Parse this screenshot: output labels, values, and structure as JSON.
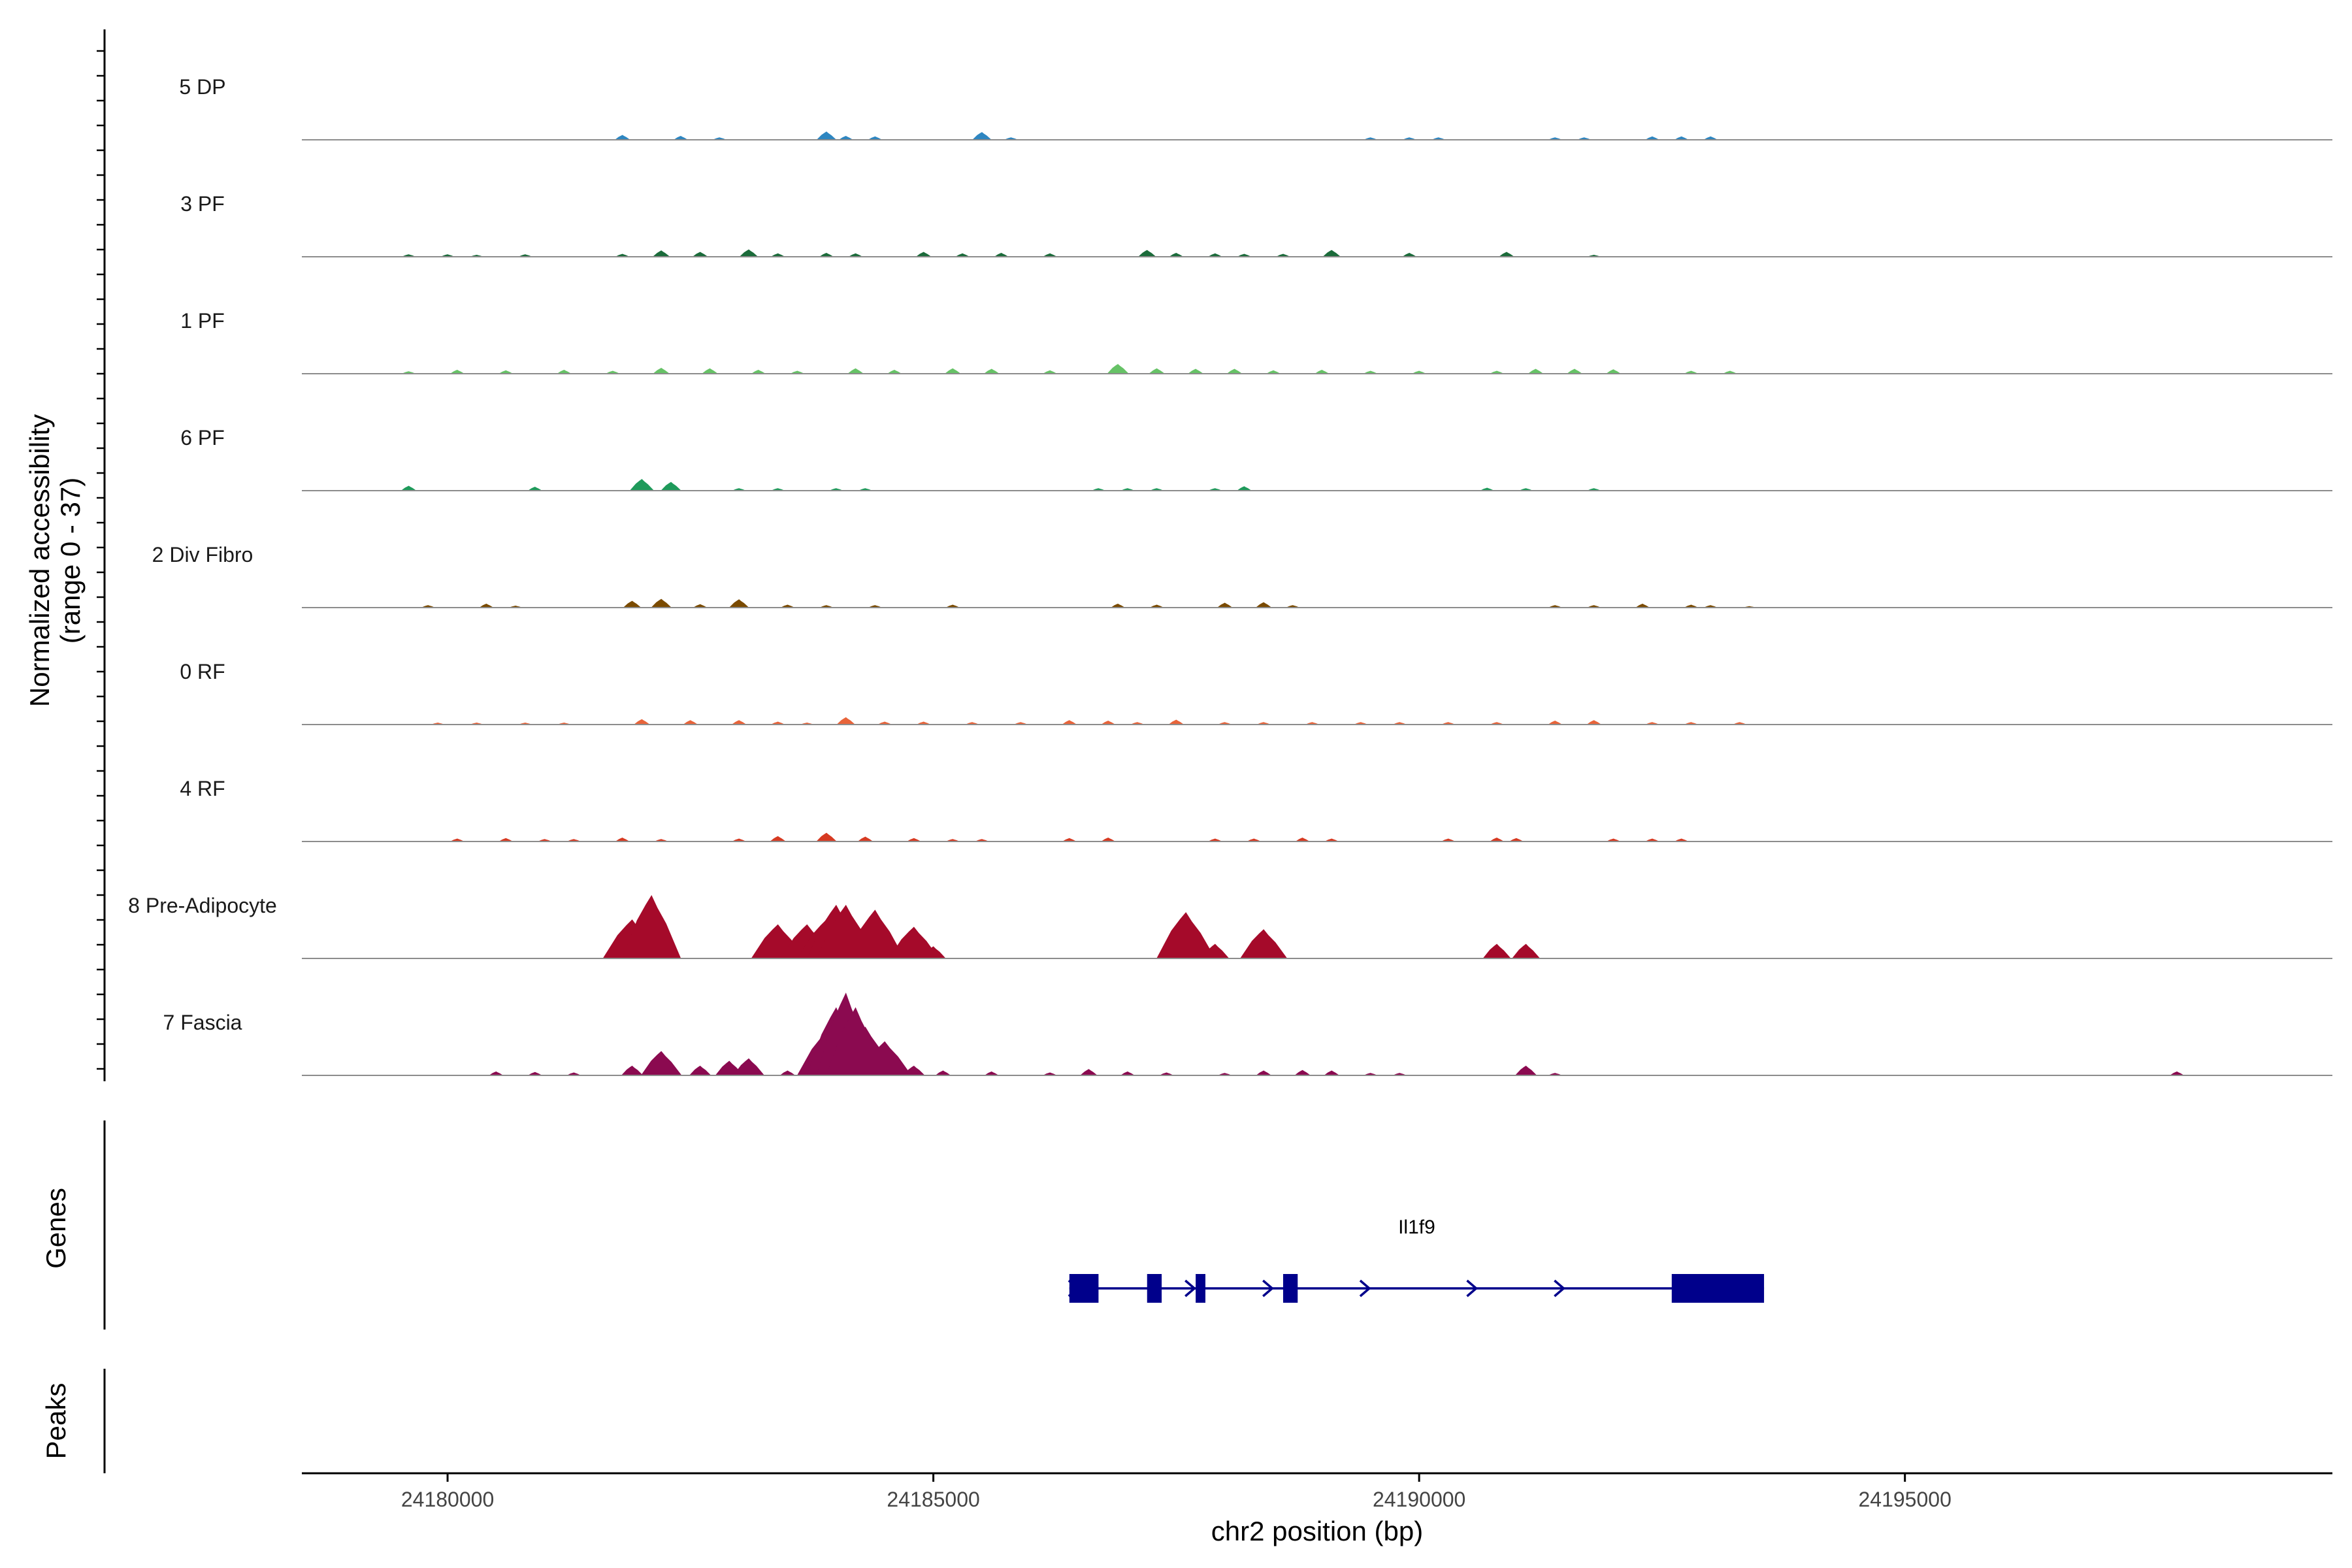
{
  "chart_data": {
    "type": "area",
    "title": "",
    "ylabel_line1": "Normalized accessibility",
    "ylabel_line2": "(range 0 - 37)",
    "ylim": [
      0,
      37
    ],
    "xlabel": "chr2 position (bp)",
    "xlim": [
      24178500,
      24199400
    ],
    "x_ticks": [
      24180000,
      24185000,
      24190000,
      24195000
    ],
    "x_tick_labels": [
      "24180000",
      "24185000",
      "24190000",
      "24195000"
    ],
    "series": [
      {
        "name": "5 DP",
        "color": "#2e86c1",
        "values": [
          [
            24181800,
            2
          ],
          [
            24182400,
            1.6
          ],
          [
            24182800,
            1
          ],
          [
            24183900,
            3.4
          ],
          [
            24184100,
            1.6
          ],
          [
            24184400,
            1.4
          ],
          [
            24185500,
            3.2
          ],
          [
            24185800,
            1
          ],
          [
            24189500,
            1
          ],
          [
            24189900,
            1
          ],
          [
            24190200,
            1
          ],
          [
            24191400,
            1
          ],
          [
            24191700,
            1
          ],
          [
            24192400,
            1.4
          ],
          [
            24192700,
            1.4
          ],
          [
            24193000,
            1.4
          ]
        ]
      },
      {
        "name": "3 PF",
        "color": "#1b6b3a",
        "values": [
          [
            24179600,
            1
          ],
          [
            24180000,
            1
          ],
          [
            24180300,
            0.8
          ],
          [
            24180800,
            1
          ],
          [
            24181800,
            1.2
          ],
          [
            24182200,
            2.6
          ],
          [
            24182600,
            2
          ],
          [
            24183100,
            3
          ],
          [
            24183400,
            1.4
          ],
          [
            24183900,
            1.6
          ],
          [
            24184200,
            1.4
          ],
          [
            24184900,
            2
          ],
          [
            24185300,
            1.4
          ],
          [
            24185700,
            1.6
          ],
          [
            24186200,
            1.4
          ],
          [
            24187200,
            2.8
          ],
          [
            24187500,
            1.6
          ],
          [
            24187900,
            1.4
          ],
          [
            24188200,
            1.2
          ],
          [
            24188600,
            1.2
          ],
          [
            24189100,
            2.8
          ],
          [
            24189900,
            1.6
          ],
          [
            24190900,
            2
          ],
          [
            24191800,
            0.8
          ]
        ]
      },
      {
        "name": "1 PF",
        "color": "#66c266",
        "values": [
          [
            24179600,
            1
          ],
          [
            24180100,
            1.6
          ],
          [
            24180600,
            1.4
          ],
          [
            24181200,
            1.6
          ],
          [
            24181700,
            1.2
          ],
          [
            24182200,
            2.4
          ],
          [
            24182700,
            2.2
          ],
          [
            24183200,
            1.6
          ],
          [
            24183600,
            1.2
          ],
          [
            24184200,
            2.2
          ],
          [
            24184600,
            1.6
          ],
          [
            24185200,
            2.2
          ],
          [
            24185600,
            2
          ],
          [
            24186200,
            1.4
          ],
          [
            24186900,
            4
          ],
          [
            24187300,
            2.2
          ],
          [
            24187700,
            2
          ],
          [
            24188100,
            2
          ],
          [
            24188500,
            1.4
          ],
          [
            24189000,
            1.6
          ],
          [
            24189500,
            1.2
          ],
          [
            24190000,
            1.2
          ],
          [
            24190800,
            1.2
          ],
          [
            24191200,
            2
          ],
          [
            24191600,
            2
          ],
          [
            24192000,
            1.8
          ],
          [
            24192800,
            1.2
          ],
          [
            24193200,
            1.2
          ]
        ]
      },
      {
        "name": "6 PF",
        "color": "#1e9a5a",
        "values": [
          [
            24179600,
            2
          ],
          [
            24180900,
            1.6
          ],
          [
            24182000,
            4.8
          ],
          [
            24182300,
            3.6
          ],
          [
            24183000,
            1
          ],
          [
            24183400,
            1
          ],
          [
            24184000,
            1
          ],
          [
            24184300,
            1
          ],
          [
            24186700,
            1
          ],
          [
            24187000,
            1
          ],
          [
            24187300,
            1
          ],
          [
            24187900,
            1
          ],
          [
            24188200,
            1.8
          ],
          [
            24190700,
            1.2
          ],
          [
            24191100,
            1
          ],
          [
            24191800,
            1
          ]
        ]
      },
      {
        "name": "2 Div Fibro",
        "color": "#7a4a00",
        "values": [
          [
            24179800,
            1
          ],
          [
            24180400,
            1.6
          ],
          [
            24180700,
            0.8
          ],
          [
            24181900,
            2.8
          ],
          [
            24182200,
            3.6
          ],
          [
            24182600,
            1.4
          ],
          [
            24183000,
            3.4
          ],
          [
            24183500,
            1.2
          ],
          [
            24183900,
            1
          ],
          [
            24184400,
            1
          ],
          [
            24185200,
            1.2
          ],
          [
            24186900,
            1.6
          ],
          [
            24187300,
            1.2
          ],
          [
            24188000,
            2
          ],
          [
            24188400,
            2.2
          ],
          [
            24188700,
            1
          ],
          [
            24191400,
            1
          ],
          [
            24191800,
            1
          ],
          [
            24192300,
            1.6
          ],
          [
            24192800,
            1.2
          ],
          [
            24193000,
            1
          ],
          [
            24193400,
            0.6
          ]
        ]
      },
      {
        "name": "0 RF",
        "color": "#e8643a",
        "values": [
          [
            24179900,
            0.8
          ],
          [
            24180300,
            0.8
          ],
          [
            24180800,
            0.8
          ],
          [
            24181200,
            0.8
          ],
          [
            24182000,
            2.2
          ],
          [
            24182500,
            1.8
          ],
          [
            24183000,
            1.8
          ],
          [
            24183400,
            1.2
          ],
          [
            24183700,
            0.8
          ],
          [
            24184100,
            3
          ],
          [
            24184500,
            1.2
          ],
          [
            24184900,
            1.2
          ],
          [
            24185400,
            1
          ],
          [
            24185900,
            1
          ],
          [
            24186400,
            1.8
          ],
          [
            24186800,
            1.6
          ],
          [
            24187100,
            1
          ],
          [
            24187500,
            2
          ],
          [
            24188000,
            1
          ],
          [
            24188400,
            1
          ],
          [
            24188900,
            1
          ],
          [
            24189400,
            1
          ],
          [
            24189800,
            1
          ],
          [
            24190300,
            1
          ],
          [
            24190800,
            1
          ],
          [
            24191400,
            1.6
          ],
          [
            24191800,
            1.8
          ],
          [
            24192400,
            1
          ],
          [
            24192800,
            1
          ],
          [
            24193300,
            1
          ]
        ]
      },
      {
        "name": "4 RF",
        "color": "#d63a22",
        "values": [
          [
            24180100,
            1.2
          ],
          [
            24180600,
            1.4
          ],
          [
            24181000,
            1
          ],
          [
            24181300,
            1
          ],
          [
            24181800,
            1.6
          ],
          [
            24182200,
            1
          ],
          [
            24183000,
            1.2
          ],
          [
            24183400,
            2.2
          ],
          [
            24183900,
            3.6
          ],
          [
            24184300,
            2
          ],
          [
            24184800,
            1.4
          ],
          [
            24185200,
            1
          ],
          [
            24185500,
            1
          ],
          [
            24186400,
            1.4
          ],
          [
            24186800,
            1.6
          ],
          [
            24187900,
            1.2
          ],
          [
            24188300,
            1.2
          ],
          [
            24188800,
            1.6
          ],
          [
            24189100,
            1.2
          ],
          [
            24190300,
            1.2
          ],
          [
            24190800,
            1.6
          ],
          [
            24191000,
            1.4
          ],
          [
            24192000,
            1.2
          ],
          [
            24192400,
            1.2
          ],
          [
            24192700,
            1.2
          ]
        ]
      },
      {
        "name": "8 Pre-Adipocyte",
        "color": "#a50a2a",
        "values": [
          [
            24181900,
            16
          ],
          [
            24182100,
            26
          ],
          [
            24183400,
            14
          ],
          [
            24183700,
            14
          ],
          [
            24183900,
            16
          ],
          [
            24184000,
            22
          ],
          [
            24184100,
            22
          ],
          [
            24184400,
            20
          ],
          [
            24184800,
            13
          ],
          [
            24185000,
            5
          ],
          [
            24187600,
            19
          ],
          [
            24187900,
            6
          ],
          [
            24188400,
            12
          ],
          [
            24190800,
            6
          ],
          [
            24191100,
            6
          ]
        ]
      },
      {
        "name": "7 Fascia",
        "color": "#8b0a50",
        "values": [
          [
            24180500,
            1.6
          ],
          [
            24180900,
            1.4
          ],
          [
            24181300,
            1.2
          ],
          [
            24181900,
            4
          ],
          [
            24182200,
            10
          ],
          [
            24182600,
            4
          ],
          [
            24182900,
            6
          ],
          [
            24183100,
            7
          ],
          [
            24183500,
            2
          ],
          [
            24183900,
            18
          ],
          [
            24184000,
            28
          ],
          [
            24184100,
            34
          ],
          [
            24184200,
            28
          ],
          [
            24184300,
            20
          ],
          [
            24184500,
            14
          ],
          [
            24184800,
            4
          ],
          [
            24185100,
            2
          ],
          [
            24185600,
            1.6
          ],
          [
            24186200,
            1.2
          ],
          [
            24186600,
            2.6
          ],
          [
            24187000,
            1.6
          ],
          [
            24187400,
            1.2
          ],
          [
            24188000,
            1
          ],
          [
            24188400,
            2
          ],
          [
            24188800,
            2.2
          ],
          [
            24189100,
            2
          ],
          [
            24189500,
            1
          ],
          [
            24189800,
            1
          ],
          [
            24191100,
            4
          ],
          [
            24191400,
            1
          ],
          [
            24197800,
            1.6
          ]
        ]
      }
    ],
    "genes_label": "Genes",
    "peaks_label": "Peaks",
    "gene": {
      "name": "Il1f9",
      "color": "#00008b",
      "start": 24186400,
      "end": 24193550,
      "exons": [
        [
          24186400,
          24186700
        ],
        [
          24187200,
          24187350
        ],
        [
          24187700,
          24187800
        ],
        [
          24188600,
          24188750
        ],
        [
          24192600,
          24193550
        ]
      ],
      "strand_arrows": [
        24186400,
        24187600,
        24188400,
        24189400,
        24190500,
        24191400
      ]
    }
  }
}
